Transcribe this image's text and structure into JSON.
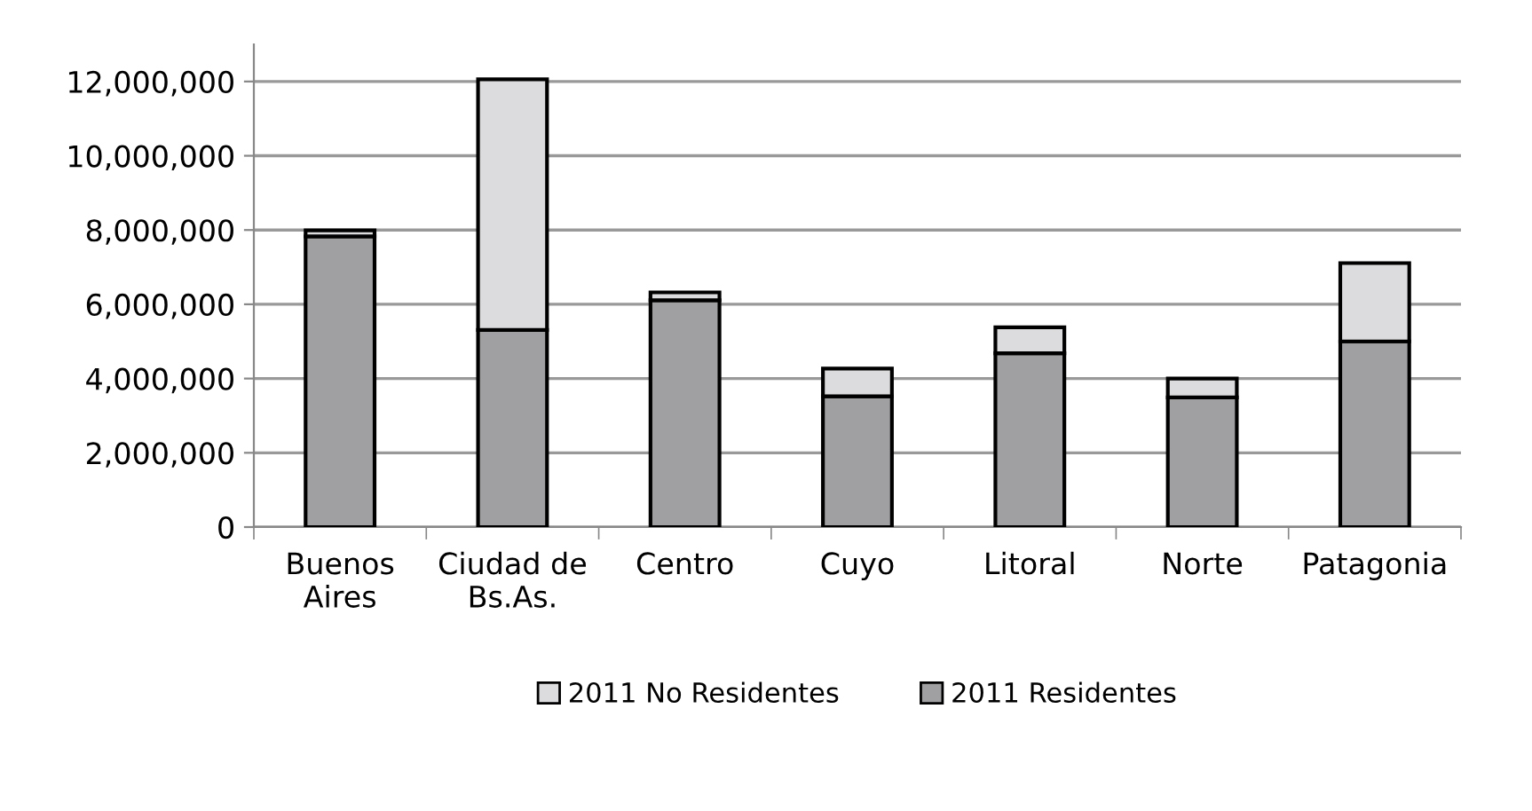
{
  "chart_data": {
    "type": "bar",
    "stacked": true,
    "categories": [
      "Buenos Aires",
      "Ciudad de Bs.As.",
      "Centro",
      "Cuyo",
      "Litoral",
      "Norte",
      "Patagonia"
    ],
    "series": [
      {
        "name": "2011 Residentes",
        "color": "#a0a0a2",
        "values": [
          7830000,
          5310000,
          6110000,
          3520000,
          4680000,
          3490000,
          5000000
        ]
      },
      {
        "name": "2011 No Residentes",
        "color": "#dcdcde",
        "values": [
          160000,
          6750000,
          210000,
          750000,
          700000,
          510000,
          2110000
        ]
      }
    ],
    "ylim": [
      0,
      13000000
    ],
    "yticks": [
      {
        "value": 0,
        "label": "0"
      },
      {
        "value": 2000000,
        "label": "2,000,000"
      },
      {
        "value": 4000000,
        "label": "4,000,000"
      },
      {
        "value": 6000000,
        "label": "6,000,000"
      },
      {
        "value": 8000000,
        "label": "8,000,000"
      },
      {
        "value": 10000000,
        "label": "10,000,000"
      },
      {
        "value": 12000000,
        "label": "12,000,000"
      }
    ],
    "grid": "y",
    "legend": "bottom"
  }
}
